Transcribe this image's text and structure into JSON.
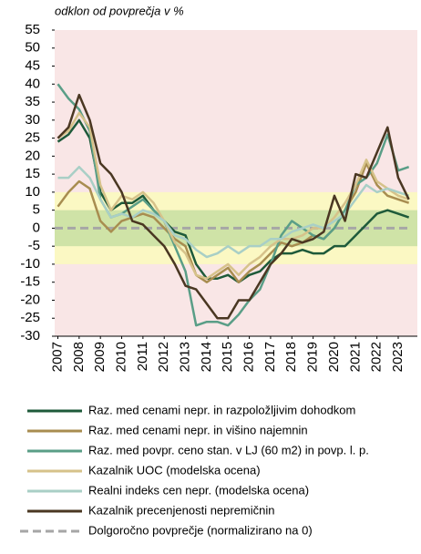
{
  "chart_data": {
    "type": "line",
    "subtitle": "odklon od povprečja v %",
    "x": [
      2007,
      2007.5,
      2008,
      2008.5,
      2009,
      2009.5,
      2010,
      2010.5,
      2011,
      2011.5,
      2012,
      2012.5,
      2013,
      2013.5,
      2014,
      2014.5,
      2015,
      2015.5,
      2016,
      2016.5,
      2017,
      2017.5,
      2018,
      2018.5,
      2019,
      2019.5,
      2020,
      2020.5,
      2021,
      2021.5,
      2022,
      2022.5,
      2023,
      2023.5
    ],
    "xlim": [
      2006.85,
      2023.9
    ],
    "xticks": [
      2007,
      2008,
      2009,
      2010,
      2011,
      2012,
      2013,
      2014,
      2015,
      2016,
      2017,
      2018,
      2019,
      2020,
      2021,
      2022,
      2023
    ],
    "ylim": [
      -30,
      55
    ],
    "yticks": [
      55,
      50,
      45,
      40,
      35,
      30,
      25,
      20,
      15,
      10,
      5,
      0,
      -5,
      -10,
      -15,
      -20,
      -25,
      -30
    ],
    "background": "#f9e6e6",
    "bands": [
      {
        "from": -10,
        "to": 10,
        "color": "#fbf8c3"
      },
      {
        "from": -5,
        "to": 5,
        "color": "#cfe3a7"
      }
    ],
    "series": [
      {
        "name": "Raz. med cenami nepr. in razpoložljivim dohodkom",
        "color": "#1e5a3a",
        "values": [
          24,
          26,
          30,
          25,
          10,
          5,
          7,
          7,
          9,
          5,
          2,
          -1,
          -2,
          -10,
          -14,
          -14,
          -13,
          -15,
          -13,
          -12,
          -9,
          -7,
          -7,
          -6,
          -7,
          -7,
          -5,
          -5,
          -2,
          1,
          4,
          5,
          4,
          3
        ]
      },
      {
        "name": "Raz. med cenami nepr. in višino najemnin",
        "color": "#a88d50",
        "values": [
          6,
          10,
          13,
          11,
          2,
          -1,
          2,
          3,
          4,
          3,
          0,
          -3,
          -5,
          -13,
          -15,
          -13,
          -11,
          -15,
          -12,
          -10,
          -7,
          -4,
          -5,
          -4,
          -2,
          -3,
          0,
          5,
          10,
          18,
          12,
          9,
          8,
          7
        ]
      },
      {
        "name": "Raz. med povpr. ceno stan. v LJ (60 m2) in povp. l. p.",
        "color": "#5a9e87",
        "values": [
          40,
          36,
          33,
          27,
          8,
          3,
          4,
          6,
          8,
          5,
          2,
          -5,
          -12,
          -27,
          -26,
          -26,
          -27,
          -24,
          -20,
          -17,
          -10,
          -2,
          2,
          0,
          -2,
          -3,
          0,
          5,
          12,
          14,
          18,
          26,
          16,
          17
        ]
      },
      {
        "name": "Kazalnik UOC (modelska ocena)",
        "color": "#d6c28a",
        "values": [
          25,
          27,
          32,
          28,
          12,
          5,
          9,
          8,
          10,
          7,
          2,
          -4,
          -7,
          -13,
          -14,
          -12,
          -10,
          -13,
          -10,
          -8,
          -5,
          -3,
          -3,
          -2,
          0,
          0,
          3,
          7,
          12,
          19,
          13,
          11,
          9,
          8
        ]
      },
      {
        "name": "Realni indeks cen nepr. (modelska ocena)",
        "color": "#a9cfc6",
        "values": [
          14,
          14,
          17,
          14,
          8,
          3,
          4,
          3,
          5,
          4,
          2,
          -2,
          -3,
          -6,
          -8,
          -7,
          -5,
          -7,
          -5,
          -5,
          -3,
          -3,
          -1,
          0,
          1,
          0,
          2,
          4,
          8,
          12,
          10,
          11,
          10,
          9
        ]
      },
      {
        "name": "Kazalnik precenjenosti nepremičnin",
        "color": "#4a3722",
        "values": [
          25,
          28,
          37,
          30,
          18,
          15,
          10,
          2,
          1,
          -2,
          -5,
          -10,
          -16,
          -17,
          -21,
          -25,
          -25,
          -20,
          -20,
          -15,
          -10,
          -7,
          -3,
          -4,
          -3,
          -1,
          9,
          2,
          15,
          14,
          21,
          28,
          14,
          8
        ]
      }
    ],
    "reference_line": {
      "name": "Dolgoročno povprečje (normalizirano na 0)",
      "value": 0,
      "color": "#a6a6a6"
    }
  }
}
